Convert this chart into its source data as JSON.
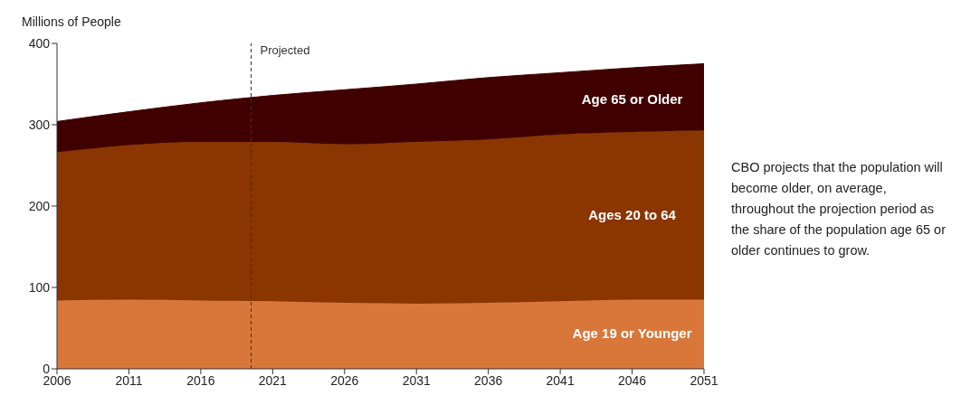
{
  "chart_data": {
    "type": "area",
    "ylabel": "Millions of People",
    "stacked": true,
    "x": [
      2006,
      2011,
      2016,
      2021,
      2026,
      2031,
      2036,
      2041,
      2046,
      2051
    ],
    "series": [
      {
        "name": "Age 19 or Younger",
        "color": "#d9773a",
        "values": [
          84,
          85,
          84,
          83,
          81,
          80,
          81,
          83,
          85,
          85
        ]
      },
      {
        "name": "Ages 20 to 64",
        "color": "#8b3500",
        "values": [
          182,
          190,
          195,
          196,
          195,
          199,
          201,
          205,
          206,
          208
        ]
      },
      {
        "name": "Age 65 or Older",
        "color": "#400000",
        "values": [
          38,
          41,
          48,
          57,
          67,
          71,
          76,
          76,
          79,
          82
        ]
      }
    ],
    "xlim": [
      2006,
      2051
    ],
    "xticks": [
      2006,
      2011,
      2016,
      2021,
      2026,
      2031,
      2036,
      2041,
      2046,
      2051
    ],
    "ylim": [
      0,
      400
    ],
    "yticks": [
      0,
      100,
      200,
      300,
      400
    ],
    "ref_lines": [
      {
        "axis": "x",
        "value": 2019.5,
        "label": "Projected",
        "color": "#333333",
        "line_style": "dashed"
      }
    ],
    "annotations": [
      "CBO projects that the population will become older, on average, throughout the projection period as the share of the population age 65 or older continues to grow."
    ],
    "grid": false,
    "legend": false
  }
}
